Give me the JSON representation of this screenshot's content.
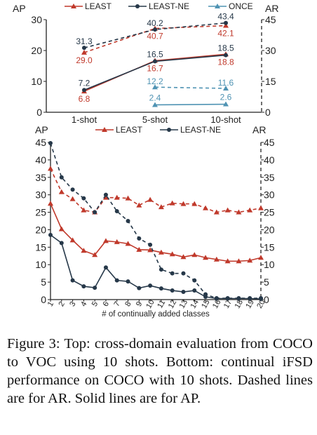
{
  "colors": {
    "least": "#c0392b",
    "least_ne": "#263849",
    "once": "#4f93b3",
    "axis": "#222222"
  },
  "caption": "Figure 3: Top: cross-domain evaluation from COCO to VOC using 10 shots. Bottom: continual iFSD performance on COCO with 10 shots. Dashed lines are for AR. Solid lines are for AP.",
  "chart_data": [
    {
      "type": "line",
      "left_axis_label": "AP",
      "right_axis_label": "AR",
      "categories": [
        "1-shot",
        "5-shot",
        "10-shot"
      ],
      "left_ticks": [
        "0",
        "10",
        "20",
        "30"
      ],
      "right_ticks": [
        "0",
        "15",
        "30",
        "45"
      ],
      "ylim_left": [
        0,
        30
      ],
      "ylim_right": [
        0,
        45
      ],
      "legend": [
        "LEAST",
        "LEAST-NE",
        "ONCE"
      ],
      "series": [
        {
          "name": "LEAST",
          "metric": "AP",
          "axis": "left",
          "style": "solid",
          "marker": "triangle",
          "color": "#c0392b",
          "values": [
            6.8,
            16.7,
            18.8
          ],
          "labels": [
            "6.8",
            "16.7",
            "18.8"
          ]
        },
        {
          "name": "LEAST-NE",
          "metric": "AP",
          "axis": "left",
          "style": "solid",
          "marker": "dot",
          "color": "#263849",
          "values": [
            7.2,
            16.5,
            18.5
          ],
          "labels": [
            "7.2",
            "16.5",
            "18.5"
          ]
        },
        {
          "name": "ONCE",
          "metric": "AP",
          "axis": "left",
          "style": "solid",
          "marker": "triangle",
          "color": "#4f93b3",
          "values": [
            null,
            2.4,
            2.6
          ],
          "labels": [
            "",
            "2.4",
            "2.6"
          ]
        },
        {
          "name": "LEAST",
          "metric": "AR",
          "axis": "right",
          "style": "dashed",
          "marker": "triangle",
          "color": "#c0392b",
          "values": [
            29.0,
            40.7,
            42.1
          ],
          "labels": [
            "29.0",
            "40.7",
            "42.1"
          ]
        },
        {
          "name": "LEAST-NE",
          "metric": "AR",
          "axis": "right",
          "style": "dashed",
          "marker": "dot",
          "color": "#263849",
          "values": [
            31.3,
            40.2,
            43.4
          ],
          "labels": [
            "31.3",
            "40.2",
            "43.4"
          ]
        },
        {
          "name": "ONCE",
          "metric": "AR",
          "axis": "right",
          "style": "dashed",
          "marker": "triangle",
          "color": "#4f93b3",
          "values": [
            null,
            12.2,
            11.6
          ],
          "labels": [
            "",
            "12.2",
            "11.6"
          ]
        }
      ]
    },
    {
      "type": "line",
      "left_axis_label": "AP",
      "right_axis_label": "AR",
      "xlabel": "# of continually added classes",
      "x": [
        "1",
        "2",
        "3",
        "4",
        "5",
        "6",
        "7",
        "8",
        "9",
        "10",
        "11",
        "12",
        "13",
        "14",
        "15",
        "16",
        "17",
        "18",
        "19",
        "20"
      ],
      "left_ticks": [
        "0",
        "5",
        "10",
        "15",
        "20",
        "25",
        "30",
        "35",
        "40",
        "45"
      ],
      "right_ticks": [
        "0",
        "5",
        "10",
        "15",
        "20",
        "25",
        "30",
        "35",
        "40",
        "45"
      ],
      "ylim_left": [
        0,
        45
      ],
      "ylim_right": [
        0,
        45
      ],
      "legend": [
        "LEAST",
        "LEAST-NE"
      ],
      "series": [
        {
          "name": "LEAST",
          "metric": "AP",
          "axis": "left",
          "style": "solid",
          "marker": "triangle",
          "color": "#c0392b",
          "values": [
            27.5,
            20.2,
            17.0,
            14.0,
            12.8,
            16.8,
            16.5,
            16.0,
            14.3,
            14.2,
            13.5,
            13.0,
            12.2,
            12.8,
            12.0,
            11.5,
            11.0,
            11.0,
            11.2,
            12.0
          ]
        },
        {
          "name": "LEAST-NE",
          "metric": "AP",
          "axis": "left",
          "style": "solid",
          "marker": "dot",
          "color": "#263849",
          "values": [
            18.5,
            16.2,
            5.5,
            3.8,
            3.4,
            9.2,
            5.5,
            5.2,
            3.3,
            4.0,
            3.2,
            2.6,
            2.2,
            2.6,
            0.8,
            0.3,
            0.3,
            0.3,
            0.3,
            0.2
          ]
        },
        {
          "name": "LEAST",
          "metric": "AR",
          "axis": "right",
          "style": "dashed",
          "marker": "triangle",
          "color": "#c0392b",
          "values": [
            37.5,
            30.8,
            28.8,
            25.6,
            25.0,
            29.2,
            29.2,
            29.0,
            27.0,
            28.6,
            26.5,
            27.6,
            27.4,
            27.4,
            26.2,
            25.0,
            25.6,
            25.0,
            25.6,
            26.2
          ]
        },
        {
          "name": "LEAST-NE",
          "metric": "AR",
          "axis": "right",
          "style": "dashed",
          "marker": "dot",
          "color": "#263849",
          "values": [
            44.8,
            35.0,
            31.5,
            29.0,
            25.0,
            30.0,
            25.3,
            22.5,
            17.5,
            15.7,
            8.6,
            7.5,
            7.5,
            5.5,
            1.5,
            0.4,
            0.4,
            0.4,
            0.4,
            0.4
          ]
        }
      ]
    }
  ]
}
